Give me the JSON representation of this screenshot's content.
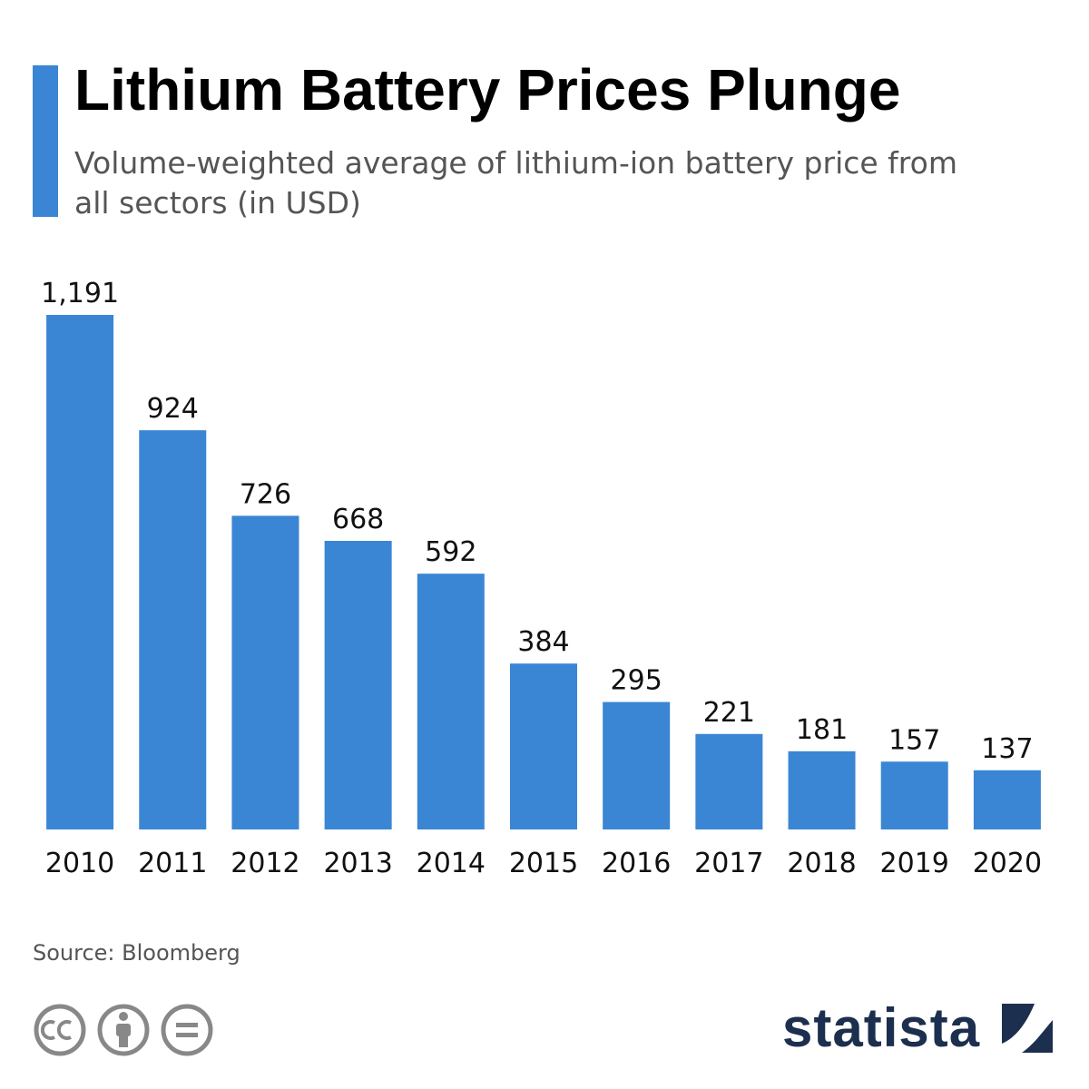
{
  "chart_data": {
    "type": "bar",
    "title": "Lithium Battery Prices Plunge",
    "subtitle": "Volume-weighted average of lithium-ion battery price from all sectors (in USD)",
    "categories": [
      "2010",
      "2011",
      "2012",
      "2013",
      "2014",
      "2015",
      "2016",
      "2017",
      "2018",
      "2019",
      "2020"
    ],
    "values": [
      1191,
      924,
      726,
      668,
      592,
      384,
      295,
      221,
      181,
      157,
      137
    ],
    "value_labels": [
      "1,191",
      "924",
      "726",
      "668",
      "592",
      "384",
      "295",
      "221",
      "181",
      "157",
      "137"
    ],
    "color": "#3a86d4",
    "source": "Source: Bloomberg",
    "brand": "statista"
  }
}
